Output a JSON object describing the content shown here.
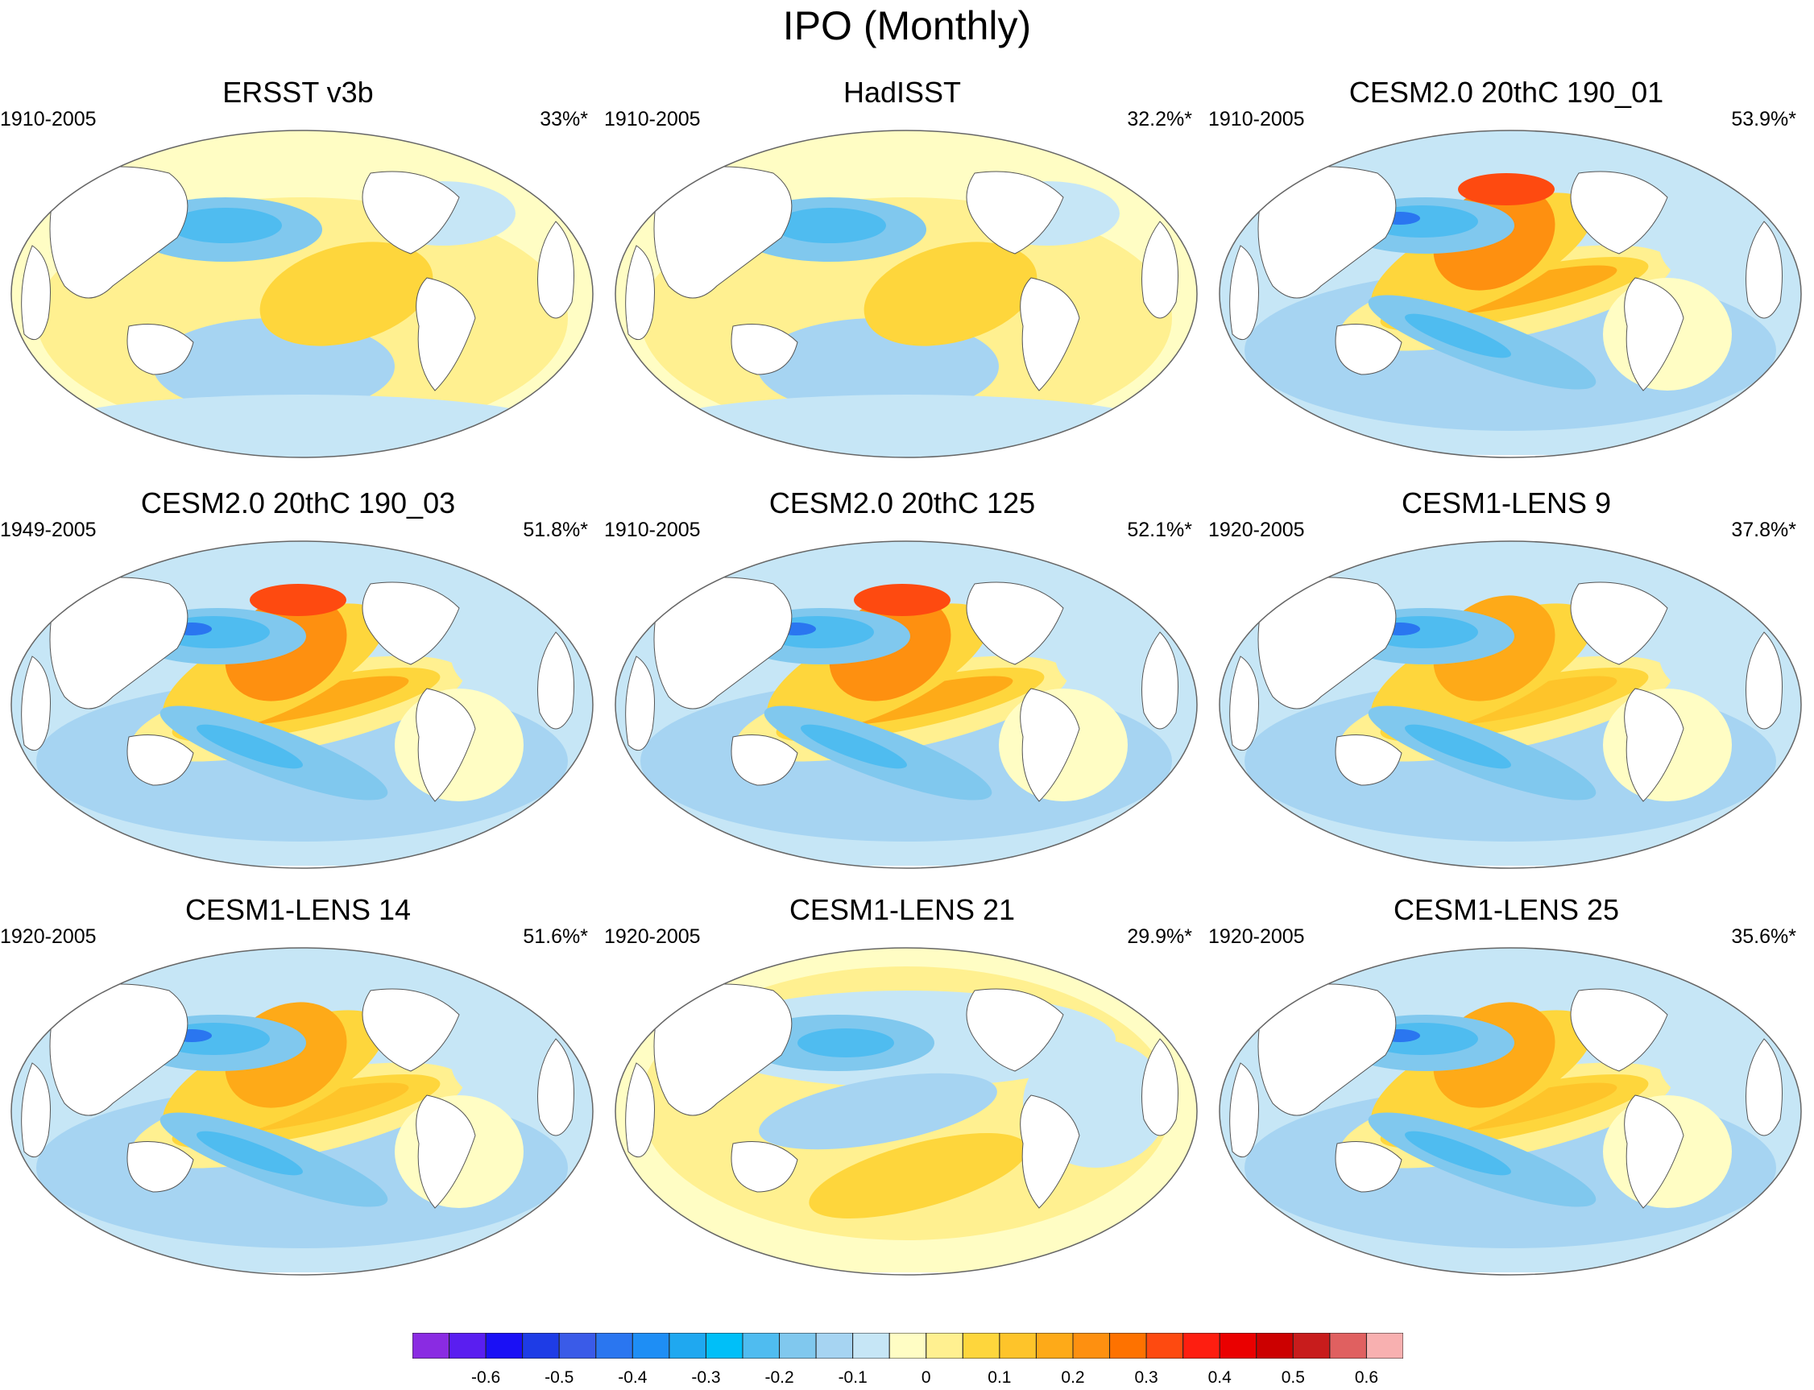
{
  "title": "IPO (Monthly)",
  "panels": [
    {
      "name": "ERSST v3b",
      "period": "1910-2005",
      "percent": "33%*",
      "pattern": "obs1"
    },
    {
      "name": "HadISST",
      "period": "1910-2005",
      "percent": "32.2%*",
      "pattern": "obs2"
    },
    {
      "name": "CESM2.0 20thC 190_01",
      "period": "1910-2005",
      "percent": "53.9%*",
      "pattern": "strong"
    },
    {
      "name": "CESM2.0 20thC 190_03",
      "period": "1949-2005",
      "percent": "51.8%*",
      "pattern": "strong"
    },
    {
      "name": "CESM2.0 20thC 125",
      "period": "1910-2005",
      "percent": "52.1%*",
      "pattern": "strong"
    },
    {
      "name": "CESM1-LENS 9",
      "period": "1920-2005",
      "percent": "37.8%*",
      "pattern": "model"
    },
    {
      "name": "CESM1-LENS 14",
      "period": "1920-2005",
      "percent": "51.6%*",
      "pattern": "model"
    },
    {
      "name": "CESM1-LENS 21",
      "period": "1920-2005",
      "percent": "29.9%*",
      "pattern": "weak"
    },
    {
      "name": "CESM1-LENS 25",
      "period": "1920-2005",
      "percent": "35.6%*",
      "pattern": "model"
    }
  ],
  "colorbar": {
    "colors": [
      "#8a2be2",
      "#5a1ef0",
      "#1a10f5",
      "#1e3ce6",
      "#3a5be8",
      "#2a76f0",
      "#1e8ef5",
      "#1fa8f0",
      "#00bff8",
      "#4fbcf0",
      "#80c8ee",
      "#a6d4f2",
      "#c6e6f6",
      "#fffdc4",
      "#fff090",
      "#fed63c",
      "#fec42a",
      "#feaa18",
      "#fe9010",
      "#fe7200",
      "#fe4a10",
      "#fe1e10",
      "#ea0000",
      "#cc0000",
      "#c81c1c",
      "#e06060",
      "#f8b0b0"
    ],
    "ticks": [
      {
        "label": "-0.6",
        "pos": 2
      },
      {
        "label": "-0.5",
        "pos": 4
      },
      {
        "label": "-0.4",
        "pos": 6
      },
      {
        "label": "-0.3",
        "pos": 8
      },
      {
        "label": "-0.2",
        "pos": 10
      },
      {
        "label": "-0.1",
        "pos": 12
      },
      {
        "label": "0",
        "pos": 14
      },
      {
        "label": "0.1",
        "pos": 16
      },
      {
        "label": "0.2",
        "pos": 18
      },
      {
        "label": "0.3",
        "pos": 20
      },
      {
        "label": "0.4",
        "pos": 22
      },
      {
        "label": "0.5",
        "pos": 24
      },
      {
        "label": "0.6",
        "pos": 26
      }
    ]
  }
}
